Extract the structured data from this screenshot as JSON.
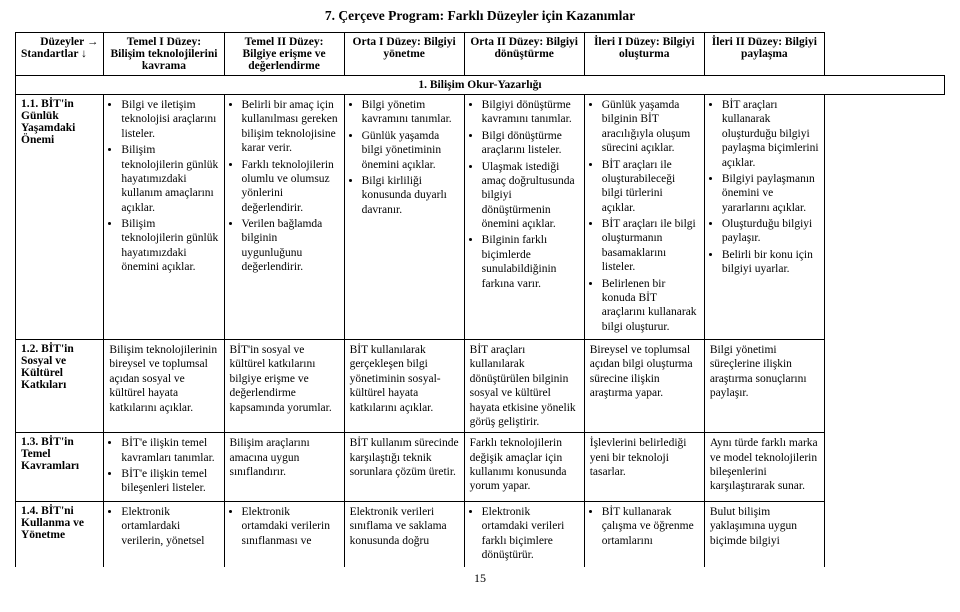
{
  "title": "7.  Çerçeve Program: Farklı Düzeyler için Kazanımlar",
  "page_number": "15",
  "header": {
    "rowcol": {
      "top": "Düzeyler  →",
      "bottom": "Standartlar  ↓"
    },
    "cols": [
      "Temel I Düzey: Bilişim teknolojilerini kavrama",
      "Temel II Düzey: Bilgiye erişme ve değerlendirme",
      "Orta I Düzey: Bilgiyi yönetme",
      "Orta II Düzey: Bilgiyi dönüştürme",
      "İleri I Düzey: Bilgiyi oluşturma",
      "İleri II Düzey: Bilgiyi paylaşma"
    ]
  },
  "section_title": "1.  Bilişim Okur-Yazarlığı",
  "rows": [
    {
      "label": "1.1.   BİT'in Günlük Yaşamdaki Önemi",
      "cells": [
        {
          "bullets": [
            "Bilgi ve iletişim teknolojisi araçlarını listeler.",
            "Bilişim teknolojilerin günlük hayatımızdaki kullanım amaçlarını açıklar.",
            "Bilişim teknolojilerin günlük hayatımızdaki önemini açıklar."
          ]
        },
        {
          "bullets": [
            "Belirli bir amaç için kullanılması gereken bilişim teknolojisine karar verir.",
            "Farklı teknolojilerin olumlu ve olumsuz yönlerini değerlendirir.",
            "Verilen bağlamda bilginin uygunluğunu değerlendirir."
          ]
        },
        {
          "bullets": [
            "Bilgi yönetim kavramını tanımlar.",
            "Günlük yaşamda bilgi yönetiminin önemini açıklar.",
            "Bilgi kirliliği konusunda duyarlı davranır."
          ]
        },
        {
          "bullets": [
            "Bilgiyi dönüştürme kavramını tanımlar.",
            "Bilgi dönüştürme araçlarını listeler.",
            "Ulaşmak istediği amaç doğrultusunda bilgiyi dönüştürmenin önemini açıklar.",
            "Bilginin farklı biçimlerde sunulabildiğinin farkına varır."
          ]
        },
        {
          "bullets": [
            "Günlük yaşamda bilginin BİT aracılığıyla oluşum sürecini açıklar.",
            "BİT araçları ile oluşturabileceği bilgi türlerini açıklar.",
            "BİT araçları ile bilgi oluşturmanın basamaklarını listeler.",
            "Belirlenen bir konuda BİT araçlarını kullanarak bilgi oluşturur."
          ]
        },
        {
          "bullets": [
            "BİT araçları kullanarak oluşturduğu bilgiyi paylaşma biçimlerini açıklar.",
            "Bilgiyi paylaşmanın önemini ve yararlarını açıklar.",
            "Oluşturduğu bilgiyi paylaşır.",
            "Belirli bir konu için bilgiyi uyarlar."
          ]
        }
      ]
    },
    {
      "label": "1.2.   BİT'in Sosyal ve Kültürel Katkıları",
      "cells": [
        {
          "plain": "Bilişim teknolojilerinin bireysel ve toplumsal açıdan sosyal ve kültürel hayata katkılarını açıklar."
        },
        {
          "plain": "BİT'in sosyal ve kültürel katkılarını bilgiye erişme ve değerlendirme kapsamında yorumlar."
        },
        {
          "plain": "BİT kullanılarak gerçekleşen bilgi yönetiminin sosyal-kültürel hayata katkılarını açıklar."
        },
        {
          "plain": "BİT araçları kullanılarak dönüştürülen bilginin sosyal ve kültürel hayata etkisine yönelik görüş geliştirir."
        },
        {
          "plain": "Bireysel ve toplumsal açıdan bilgi oluşturma sürecine ilişkin araştırma yapar."
        },
        {
          "plain": "Bilgi yönetimi süreçlerine ilişkin araştırma sonuçlarını paylaşır."
        }
      ]
    },
    {
      "label": "1.3.   BİT'in Temel Kavramları",
      "cells": [
        {
          "bullets": [
            "BİT'e ilişkin temel kavramları tanımlar.",
            "BİT'e ilişkin temel bileşenleri listeler."
          ]
        },
        {
          "plain": "Bilişim araçlarını amacına uygun sınıflandırır."
        },
        {
          "plain": "BİT kullanım sürecinde karşılaştığı teknik sorunlara çözüm üretir."
        },
        {
          "plain": "Farklı teknolojilerin değişik amaçlar için kullanımı konusunda yorum yapar."
        },
        {
          "plain": "İşlevlerini belirlediği yeni bir teknoloji tasarlar."
        },
        {
          "plain": "Aynı türde farklı marka ve model teknolojilerin bileşenlerini karşılaştırarak sunar."
        }
      ]
    },
    {
      "label": "1.4.   BİT'ni Kullanma ve Yönetme",
      "cells": [
        {
          "bullets": [
            "Elektronik ortamlardaki verilerin, yönetsel"
          ]
        },
        {
          "bullets": [
            "Elektronik ortamdaki verilerin sınıflanması ve"
          ]
        },
        {
          "plain": "Elektronik verileri sınıflama ve saklama konusunda doğru"
        },
        {
          "bullets": [
            "Elektronik ortamdaki verileri farklı biçimlere dönüştürür."
          ]
        },
        {
          "bullets": [
            "BİT kullanarak çalışma ve öğrenme ortamlarını"
          ]
        },
        {
          "plain": "Bulut bilişim yaklaşımına uygun biçimde bilgiyi"
        }
      ]
    }
  ]
}
